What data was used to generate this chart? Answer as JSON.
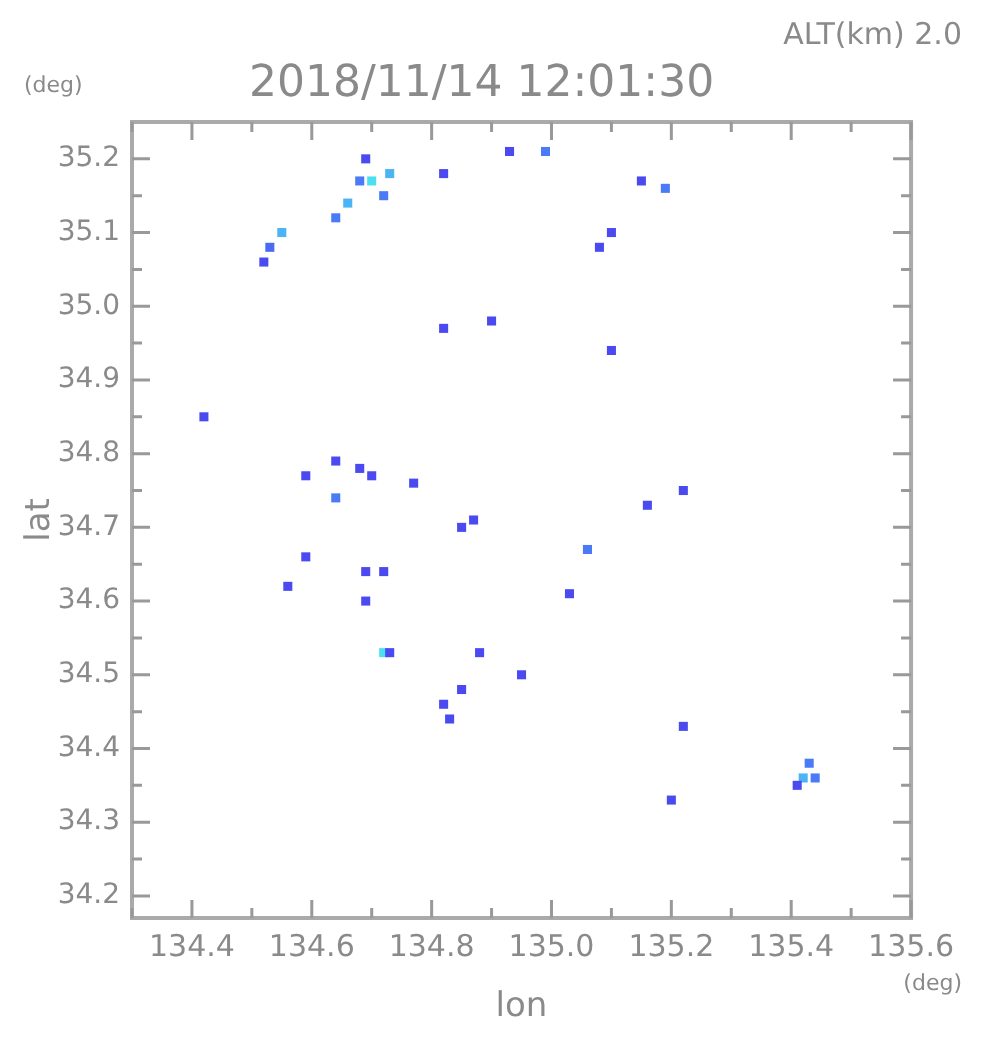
{
  "chart_data": {
    "type": "scatter",
    "title": "2018/11/14 12:01:30",
    "xlabel": "lon",
    "ylabel": "lat",
    "annotations": [
      "ALT(km) 2.0",
      "(deg)",
      "(deg)"
    ],
    "x": [
      134.53,
      134.52,
      134.55,
      134.69,
      134.68,
      134.66,
      134.64,
      134.7,
      134.73,
      134.72,
      134.82,
      134.93,
      134.99,
      135.15,
      135.19,
      135.1,
      135.08,
      134.82,
      134.9,
      135.1,
      134.42,
      134.59,
      134.64,
      134.68,
      134.7,
      134.64,
      134.77,
      134.85,
      134.87,
      134.59,
      134.56,
      134.69,
      134.72,
      134.69,
      134.72,
      134.73,
      134.88,
      134.82,
      134.83,
      134.85,
      134.95,
      135.06,
      135.03,
      135.22,
      135.2,
      135.42,
      135.43,
      135.41,
      135.44,
      135.22,
      135.16
    ],
    "values": [
      35.08,
      35.06,
      35.1,
      35.2,
      35.17,
      35.14,
      35.12,
      35.17,
      35.18,
      35.15,
      35.18,
      35.21,
      35.21,
      35.17,
      35.16,
      35.1,
      35.08,
      34.97,
      34.98,
      34.94,
      34.85,
      34.77,
      34.79,
      34.78,
      34.77,
      34.74,
      34.76,
      34.7,
      34.71,
      34.66,
      34.62,
      34.64,
      34.64,
      34.6,
      34.53,
      34.53,
      34.53,
      34.46,
      34.44,
      34.48,
      34.5,
      34.67,
      34.61,
      34.43,
      34.33,
      34.36,
      34.38,
      34.35,
      34.36,
      34.75,
      34.73
    ],
    "colors": [
      "#4a6af2",
      "#4a4af0",
      "#4ab4f5",
      "#4a4af0",
      "#4a7af5",
      "#4ab4f5",
      "#4a7af5",
      "#4ae0f0",
      "#4ab4f5",
      "#4a7af5",
      "#4a4af0",
      "#4a4af0",
      "#4a7af5",
      "#4a4af0",
      "#4a7af5",
      "#4a4af0",
      "#4a4af0",
      "#4a4af0",
      "#4a4af0",
      "#4a4af0",
      "#4a4af0",
      "#4a4af0",
      "#4a4af0",
      "#4a4af0",
      "#4a4af0",
      "#4a7af5",
      "#4a4af0",
      "#4a4af0",
      "#4a4af0",
      "#4a4af0",
      "#4a4af0",
      "#4a4af0",
      "#4a4af0",
      "#4a4af0",
      "#4ae0f0",
      "#4a4af0",
      "#4a4af0",
      "#4a4af0",
      "#4a4af0",
      "#4a4af0",
      "#4a4af0",
      "#4a7af5",
      "#4a4af0",
      "#4a4af0",
      "#4a4af0",
      "#4ab4f5",
      "#4a7af5",
      "#4a4af0",
      "#4a7af5",
      "#4a4af0",
      "#4a4af0"
    ],
    "marker": "square",
    "grid": false,
    "legend": false,
    "xlim": [
      134.3,
      135.6
    ],
    "xticks": [
      {
        "value": 134.3,
        "label": null
      },
      134.4,
      {
        "value": 134.5,
        "label": null
      },
      134.6,
      {
        "value": 134.7,
        "label": null
      },
      134.8,
      {
        "value": 134.9,
        "label": null
      },
      {
        "value": 135,
        "label": "135.0"
      },
      {
        "value": 135.1,
        "label": null
      },
      135.2,
      {
        "value": 135.3,
        "label": null
      },
      135.4,
      {
        "value": 135.5,
        "label": null
      },
      135.6
    ],
    "ylim": [
      34.17,
      35.25
    ],
    "yticks": [
      34.2,
      {
        "value": 34.25,
        "label": null
      },
      34.3,
      {
        "value": 34.35,
        "label": null
      },
      34.4,
      {
        "value": 34.45,
        "label": null
      },
      34.5,
      {
        "value": 34.55,
        "label": null
      },
      34.6,
      {
        "value": 34.65,
        "label": null
      },
      34.7,
      {
        "value": 34.75,
        "label": null
      },
      34.8,
      {
        "value": 34.85,
        "label": null
      },
      34.9,
      {
        "value": 34.95,
        "label": null
      },
      {
        "value": 35,
        "label": "35.0"
      },
      {
        "value": 35.05,
        "label": null
      },
      35.1,
      {
        "value": 35.15,
        "label": null
      },
      35.2
    ]
  }
}
